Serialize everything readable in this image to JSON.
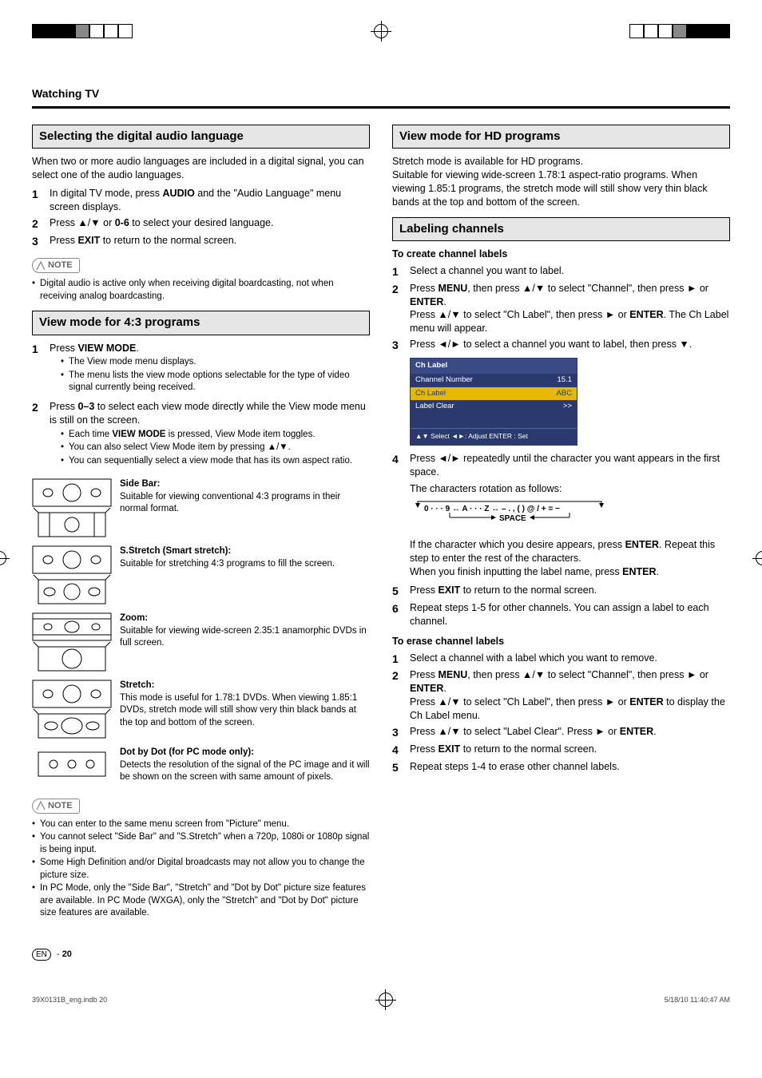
{
  "breadcrumb": "Watching TV",
  "left": {
    "sec1": {
      "title": "Selecting the digital audio language",
      "intro": "When two or more audio languages are included in a digital signal, you can select one of the audio languages.",
      "steps": [
        "In digital TV mode, press <b>AUDIO</b> and the \"Audio Language\" menu screen displays.",
        "Press ▲/▼ or <b>0-6</b> to select your desired language.",
        "Press <b>EXIT</b> to return to the normal screen."
      ],
      "note": "Digital audio is active only when receiving digital boardcasting, not when receiving analog boardcasting."
    },
    "sec2": {
      "title": "View mode for 4:3 programs",
      "step1": "Press <b>VIEW MODE</b>.",
      "step1_subs": [
        "The View mode menu displays.",
        "The menu lists the view mode options selectable for the type of video signal currently being received."
      ],
      "step2": "Press <b>0–3</b> to select each view mode directly while the View mode menu is still on the screen.",
      "step2_subs": [
        "Each time <b>VIEW MODE</b> is pressed, View Mode item toggles.",
        "You can also select View Mode item by pressing ▲/▼.",
        "You can sequentially select a view mode that has its own aspect ratio."
      ],
      "modes": [
        {
          "title": "Side Bar:",
          "desc": "Suitable for viewing conventional 4:3 programs in their normal format."
        },
        {
          "title": "S.Stretch (Smart stretch):",
          "desc": "Suitable for stretching 4:3 programs to fill the screen."
        },
        {
          "title": "Zoom:",
          "desc": "Suitable for viewing wide-screen 2.35:1 anamorphic DVDs in full screen."
        },
        {
          "title": "Stretch:",
          "desc": "This mode is useful for 1.78:1 DVDs. When viewing 1.85:1 DVDs, stretch mode will still show very thin black bands at the top and bottom of the screen."
        },
        {
          "title": "Dot by Dot (for PC mode only):",
          "desc": "Detects the resolution of the signal of the PC image and it will be shown on the screen with same amount of pixels."
        }
      ],
      "notes": [
        "You can enter to the same menu screen from \"Picture\" menu.",
        "You cannot select \"Side Bar\" and \"S.Stretch\" when a 720p, 1080i or 1080p signal is being input.",
        "Some High Definition and/or Digital broadcasts may not allow you to change the picture size.",
        "In PC Mode, only the \"Side Bar\", \"Stretch\" and \"Dot by Dot\" picture size features are available. In PC Mode (WXGA), only the \"Stretch\" and \"Dot by Dot\" picture size features are available."
      ]
    }
  },
  "right": {
    "sec3": {
      "title": "View mode for HD programs",
      "body": "Stretch mode is available for HD programs.\nSuitable for viewing wide-screen 1.78:1 aspect-ratio programs. When viewing 1.85:1 programs, the stretch mode will still show very thin black bands at the top and bottom of the screen."
    },
    "sec4": {
      "title": "Labeling channels",
      "create_head": "To create channel labels",
      "create_steps": [
        "Select a channel you want to label.",
        "Press <b>MENU</b>, then press ▲/▼ to select \"Channel\", then press ► or <b>ENTER</b>.<br>Press ▲/▼ to select \"Ch Label\", then press ► or <b>ENTER</b>. The Ch Label menu will appear.",
        "Press ◄/► to select a channel you want to label, then press ▼."
      ],
      "osd": {
        "title": "Ch Label",
        "rows": [
          {
            "k": "Channel Number",
            "v": "15.1"
          },
          {
            "k": "Ch Label",
            "v": "ABC",
            "sel": true
          },
          {
            "k": "Label Clear",
            "v": ">>"
          }
        ],
        "foot": "▲▼ Select   ◄►: Adjust  ENTER : Set"
      },
      "step4": "Press ◄/► repeatedly until the character you want appears in the first space.",
      "char_intro": "The characters rotation as follows:",
      "char_seq": "0 · · · 9 ↔ A · · · Z ↔ – . , ( ) @ / + = −",
      "char_space": "SPACE",
      "char_body": "If the character which you desire appears, press <b>ENTER</b>. Repeat this step to enter the rest of the characters.<br>When you finish inputting the label name, press <b>ENTER</b>.",
      "step5": "Press <b>EXIT</b> to return to the normal screen.",
      "step6": "Repeat steps 1-5 for other channels. You can assign a label to each channel.",
      "erase_head": "To erase channel labels",
      "erase_steps": [
        "Select a channel with a label which you want to remove.",
        "Press <b>MENU</b>, then press ▲/▼ to select \"Channel\", then press ► or <b>ENTER</b>.<br>Press ▲/▼ to select \"Ch Label\", then press ► or <b>ENTER</b> to display the Ch Label menu.",
        "Press ▲/▼ to select \"Label Clear\". Press ► or <b>ENTER</b>.",
        "Press <b>EXIT</b> to return to the normal screen.",
        "Repeat steps 1-4 to erase other channel labels."
      ]
    }
  },
  "page": {
    "lang": "EN",
    "num": "20"
  },
  "footer": {
    "file": "39X0131B_eng.indb   20",
    "date": "5/18/10   11:40:47 AM"
  },
  "note_label": "NOTE"
}
